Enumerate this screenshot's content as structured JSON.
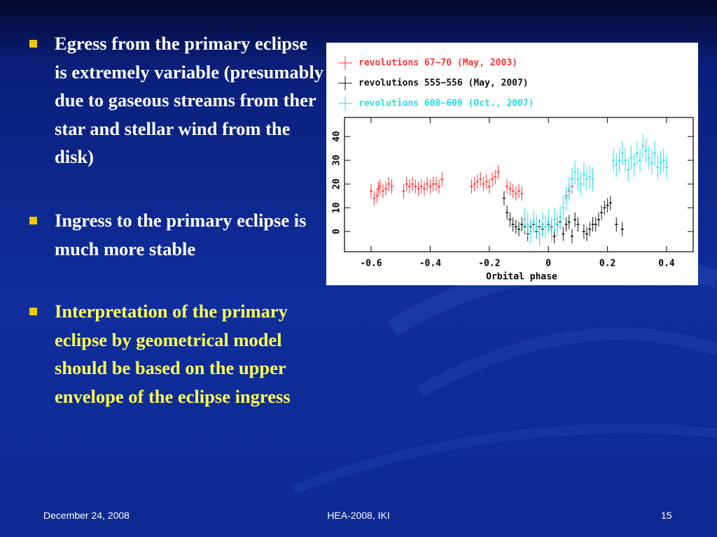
{
  "bullets": [
    {
      "text": "Egress from the primary eclipse is extremely variable (presumably due to gaseous streams from ther star and stellar wind from the disk)"
    },
    {
      "text": "Ingress to the primary eclipse is much more stable"
    },
    {
      "text": "Interpretation of the primary eclipse by geometrical model should be based on the upper envelope of the eclipse ingress"
    }
  ],
  "footer": {
    "date": "December 24, 2008",
    "center": "HEA-2008, IKI",
    "page": "15"
  },
  "chart_data": {
    "type": "scatter",
    "x_label": "Orbital phase",
    "xlim": [
      -0.69,
      0.49
    ],
    "ylim": [
      -8.5,
      48
    ],
    "xticks": [
      -0.6,
      -0.4,
      -0.2,
      0,
      0.2,
      0.4
    ],
    "yticks": [
      0,
      10,
      20,
      30,
      40
    ],
    "series": [
      {
        "name": "revolutions 67−70 (May, 2003)",
        "color": "#ff3333",
        "yerr": 3,
        "x": [
          -0.6,
          -0.59,
          -0.58,
          -0.575,
          -0.57,
          -0.56,
          -0.55,
          -0.54,
          -0.53,
          -0.49,
          -0.48,
          -0.47,
          -0.46,
          -0.45,
          -0.44,
          -0.43,
          -0.42,
          -0.41,
          -0.4,
          -0.39,
          -0.38,
          -0.37,
          -0.36,
          -0.26,
          -0.25,
          -0.24,
          -0.23,
          -0.22,
          -0.21,
          -0.2,
          -0.19,
          -0.18,
          -0.17,
          -0.14,
          -0.13,
          -0.12,
          -0.11,
          -0.1,
          -0.09,
          0.06,
          0.07,
          0.08
        ],
        "y": [
          17,
          14,
          15,
          18,
          19,
          17,
          18,
          20,
          19,
          17,
          20,
          19,
          20,
          19,
          18,
          19,
          18,
          20,
          19,
          20,
          20,
          19,
          22,
          19,
          20,
          21,
          22,
          20,
          21,
          19,
          22,
          23,
          25,
          19,
          18,
          17,
          16,
          17,
          16,
          15,
          17,
          19
        ]
      },
      {
        "name": "revolutions 555−556 (May, 2007)",
        "color": "#111111",
        "yerr": 3,
        "x": [
          -0.15,
          -0.14,
          -0.13,
          -0.12,
          -0.11,
          -0.1,
          -0.09,
          -0.08,
          -0.07,
          -0.06,
          -0.05,
          -0.04,
          -0.03,
          -0.02,
          0,
          0.01,
          0.02,
          0.03,
          0.04,
          0.05,
          0.06,
          0.07,
          0.08,
          0.09,
          0.1,
          0.12,
          0.13,
          0.14,
          0.15,
          0.16,
          0.17,
          0.18,
          0.19,
          0.2,
          0.21,
          0.23,
          0.25
        ],
        "y": [
          14,
          8,
          5,
          3,
          2,
          1,
          3,
          2,
          -1,
          2,
          3,
          0,
          2,
          1,
          3,
          2,
          -2,
          3,
          4,
          -1,
          3,
          4,
          -2,
          5,
          3,
          0,
          -1,
          1,
          3,
          3,
          5,
          8,
          10,
          11,
          12,
          3,
          1
        ]
      },
      {
        "name": "revolutions 608−609 (Oct., 2007)",
        "color": "#22e0e8",
        "yerr": 5,
        "x": [
          -0.08,
          -0.07,
          -0.06,
          -0.05,
          -0.04,
          -0.03,
          -0.02,
          -0.01,
          0,
          0.01,
          0.02,
          0.03,
          0.04,
          0.05,
          0.06,
          0.07,
          0.08,
          0.09,
          0.1,
          0.11,
          0.12,
          0.13,
          0.14,
          0.15,
          0.22,
          0.23,
          0.24,
          0.25,
          0.26,
          0.27,
          0.28,
          0.29,
          0.3,
          0.31,
          0.32,
          0.33,
          0.34,
          0.35,
          0.36,
          0.37,
          0.38,
          0.39,
          0.4
        ],
        "y": [
          5,
          3,
          0,
          4,
          2,
          -1,
          3,
          2,
          4,
          1,
          5,
          3,
          6,
          10,
          14,
          18,
          22,
          25,
          22,
          20,
          24,
          22,
          23,
          22,
          30,
          28,
          30,
          33,
          30,
          26,
          31,
          28,
          33,
          30,
          36,
          34,
          31,
          29,
          33,
          27,
          29,
          30,
          27
        ]
      }
    ]
  }
}
